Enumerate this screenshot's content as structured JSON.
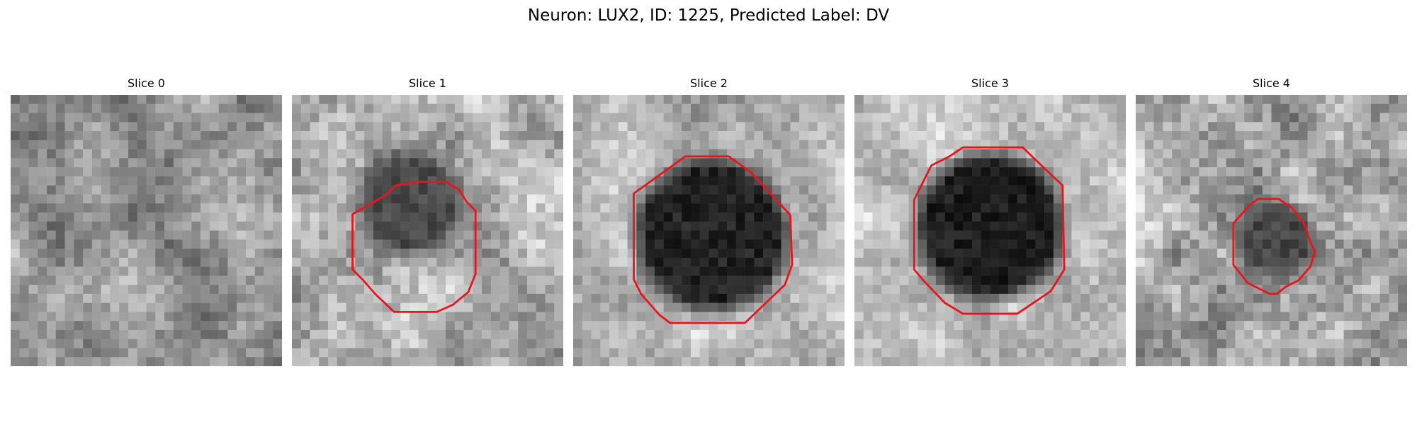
{
  "figure": {
    "title": "Neuron: LUX2, ID: 1225, Predicted Label: DV",
    "contour_color": "#e8161c"
  },
  "slices": [
    {
      "title": "Slice 0",
      "has_contour": false
    },
    {
      "title": "Slice 1",
      "has_contour": true
    },
    {
      "title": "Slice 2",
      "has_contour": true
    },
    {
      "title": "Slice 3",
      "has_contour": true
    },
    {
      "title": "Slice 4",
      "has_contour": true
    }
  ]
}
